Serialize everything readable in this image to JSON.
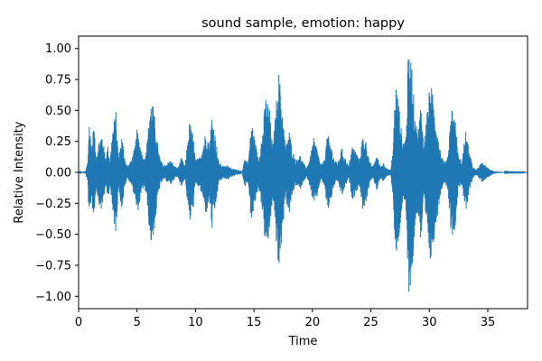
{
  "chart_data": {
    "type": "line",
    "title": "sound sample, emotion: happy",
    "xlabel": "Time",
    "ylabel": "Relative Intensity",
    "xlim": [
      0,
      38.4
    ],
    "ylim": [
      -1.1,
      1.1
    ],
    "xticks": [
      0,
      5,
      10,
      15,
      20,
      25,
      30,
      35
    ],
    "xtick_labels": [
      "0",
      "5",
      "10",
      "15",
      "20",
      "25",
      "30",
      "35"
    ],
    "yticks": [
      1.0,
      0.75,
      0.5,
      0.25,
      0.0,
      -0.25,
      -0.5,
      -0.75,
      -1.0
    ],
    "ytick_labels": [
      "1.00",
      "0.75",
      "0.50",
      "0.25",
      "0.00",
      "−0.25",
      "−0.50",
      "−0.75",
      "−1.00"
    ],
    "grid": false,
    "legend": false,
    "color": "#1f77b4",
    "series": [
      {
        "envelope_time": [
          0.0,
          0.6,
          0.8,
          0.9,
          1.1,
          1.3,
          1.5,
          1.7,
          2.0,
          2.3,
          2.5,
          2.7,
          2.9,
          3.2,
          3.4,
          3.7,
          4.0,
          4.2,
          4.5,
          4.8,
          5.0,
          5.3,
          5.6,
          5.9,
          6.1,
          6.3,
          6.5,
          6.8,
          7.0,
          7.3,
          7.6,
          7.9,
          8.2,
          8.5,
          8.8,
          9.1,
          9.5,
          9.8,
          10.0,
          10.3,
          10.6,
          10.9,
          11.2,
          11.4,
          11.7,
          12.0,
          12.4,
          12.8,
          13.2,
          13.6,
          14.0,
          14.2,
          14.5,
          14.8,
          15.1,
          15.4,
          15.7,
          16.0,
          16.3,
          16.6,
          16.9,
          17.1,
          17.4,
          17.7,
          18.0,
          18.3,
          18.6,
          18.9,
          19.2,
          19.5,
          19.8,
          20.1,
          20.4,
          20.7,
          21.0,
          21.3,
          21.6,
          21.9,
          22.2,
          22.5,
          22.8,
          23.1,
          23.4,
          23.7,
          24.0,
          24.3,
          24.6,
          24.9,
          25.2,
          25.5,
          25.8,
          26.1,
          26.4,
          26.7,
          26.9,
          27.1,
          27.4,
          27.7,
          28.0,
          28.2,
          28.5,
          28.7,
          29.0,
          29.3,
          29.5,
          29.8,
          30.1,
          30.4,
          30.7,
          31.0,
          31.3,
          31.6,
          31.9,
          32.2,
          32.5,
          32.8,
          33.1,
          33.4,
          33.7,
          34.0,
          34.5,
          35.0,
          35.5,
          36.0,
          36.5,
          37.0,
          37.5,
          38.0,
          38.4
        ],
        "envelope_amplitude": [
          0.0,
          0.01,
          0.1,
          0.45,
          0.2,
          0.4,
          0.12,
          0.25,
          0.32,
          0.12,
          0.22,
          0.1,
          0.35,
          0.5,
          0.12,
          0.3,
          0.1,
          0.05,
          0.1,
          0.2,
          0.35,
          0.22,
          0.1,
          0.28,
          0.55,
          0.6,
          0.45,
          0.2,
          0.1,
          0.06,
          0.08,
          0.1,
          0.05,
          0.04,
          0.12,
          0.05,
          0.42,
          0.3,
          0.1,
          0.12,
          0.2,
          0.35,
          0.22,
          0.48,
          0.3,
          0.08,
          0.05,
          0.06,
          0.03,
          0.02,
          0.01,
          0.12,
          0.08,
          0.42,
          0.25,
          0.12,
          0.3,
          0.62,
          0.55,
          0.2,
          0.55,
          0.85,
          0.55,
          0.2,
          0.35,
          0.18,
          0.1,
          0.15,
          0.08,
          0.04,
          0.12,
          0.28,
          0.2,
          0.06,
          0.1,
          0.32,
          0.22,
          0.1,
          0.08,
          0.2,
          0.12,
          0.05,
          0.22,
          0.18,
          0.1,
          0.3,
          0.25,
          0.08,
          0.05,
          0.15,
          0.05,
          0.08,
          0.03,
          0.02,
          0.2,
          0.75,
          0.55,
          0.25,
          0.3,
          0.98,
          0.9,
          0.55,
          0.3,
          0.6,
          0.22,
          0.5,
          0.75,
          0.55,
          0.35,
          0.15,
          0.08,
          0.15,
          0.55,
          0.45,
          0.12,
          0.1,
          0.35,
          0.18,
          0.05,
          0.02,
          0.08,
          0.04,
          0.01,
          0.005,
          0.003,
          0.002,
          0.002,
          0.002,
          0.0
        ]
      }
    ]
  }
}
